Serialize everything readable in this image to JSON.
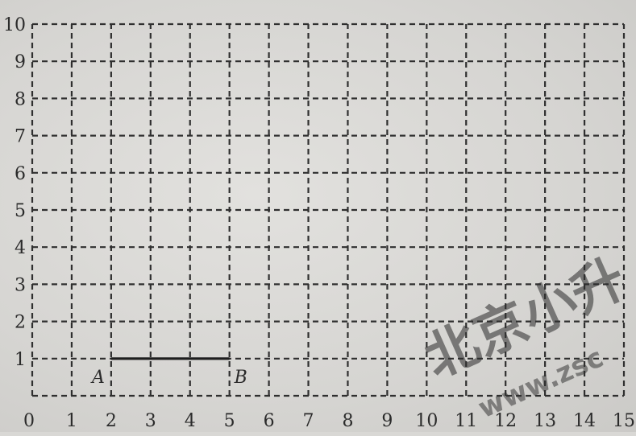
{
  "grid": {
    "x_min": 0,
    "x_max": 15,
    "y_min": 0,
    "y_max": 10,
    "line_style": "dashed",
    "line_color": "#2f2f2f",
    "background": "#dcdbd8"
  },
  "x_ticks": [
    "0",
    "1",
    "2",
    "3",
    "4",
    "5",
    "6",
    "7",
    "8",
    "9",
    "10",
    "11",
    "12",
    "13",
    "14",
    "15"
  ],
  "y_ticks": [
    "1",
    "2",
    "3",
    "4",
    "5",
    "6",
    "7",
    "8",
    "9",
    "10"
  ],
  "points": [
    {
      "id": "A",
      "label": "A",
      "x": 2,
      "y": 1
    },
    {
      "id": "B",
      "label": "B",
      "x": 5,
      "y": 1
    }
  ],
  "segment": {
    "from": "A",
    "to": "B",
    "color": "#1e1e1e"
  },
  "watermark": {
    "text": "北京小升",
    "subtext": "www.zsc",
    "color": "#f0a55c"
  }
}
